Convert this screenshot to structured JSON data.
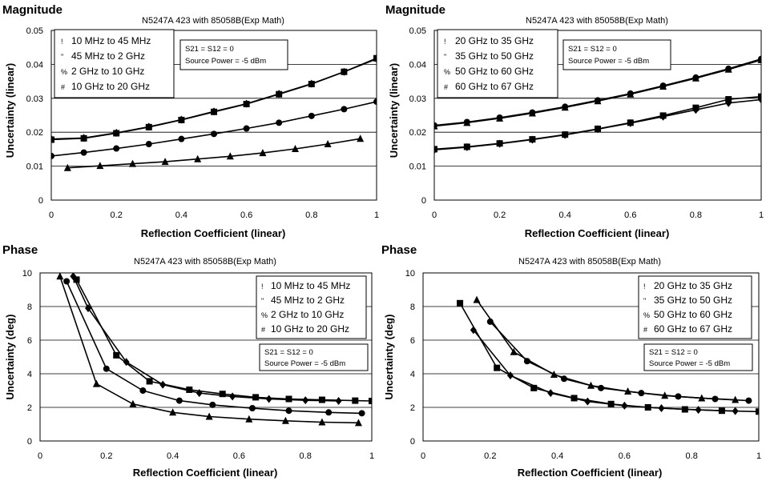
{
  "chart_data": [
    {
      "type": "line",
      "heading": "Magnitude",
      "title": "N5247A 423 with 85058B(Exp Math)",
      "xlabel": "Reflection Coefficient (linear)",
      "ylabel": "Uncertainty (linear)",
      "xlim": [
        0,
        1
      ],
      "ylim": [
        0,
        0.05
      ],
      "xticks": [
        "0",
        "0.2",
        "0.4",
        "0.6",
        "0.8",
        "1"
      ],
      "yticks": [
        "0",
        "0.01",
        "0.02",
        "0.03",
        "0.04",
        "0.05"
      ],
      "grid": true,
      "legend_position": "top-left",
      "legend_symbols": [
        "!",
        "\"",
        "%",
        "#"
      ],
      "note": [
        "S21 = S12 = 0",
        "Source Power = -5 dBm"
      ],
      "series": [
        {
          "name": "10 MHz to 45 MHz",
          "marker": "square",
          "x": [
            0,
            0.1,
            0.2,
            0.3,
            0.4,
            0.5,
            0.6,
            0.7,
            0.8,
            0.9,
            1.0
          ],
          "y": [
            0.0178,
            0.0182,
            0.0197,
            0.0215,
            0.0236,
            0.026,
            0.0283,
            0.0312,
            0.0342,
            0.0378,
            0.0418
          ]
        },
        {
          "name": "45 MHz to 2 GHz",
          "marker": "diamond",
          "x": [
            0,
            0.1,
            0.2,
            0.3,
            0.4,
            0.5,
            0.6,
            0.7,
            0.8,
            0.9,
            1.0
          ],
          "y": [
            0.018,
            0.0183,
            0.0198,
            0.0216,
            0.0237,
            0.0261,
            0.0284,
            0.0313,
            0.0343,
            0.0378,
            0.0416
          ]
        },
        {
          "name": "2 GHz to 10 GHz",
          "marker": "circle",
          "x": [
            0,
            0.1,
            0.2,
            0.3,
            0.4,
            0.5,
            0.6,
            0.7,
            0.8,
            0.9,
            1.0
          ],
          "y": [
            0.013,
            0.014,
            0.0152,
            0.0165,
            0.018,
            0.0195,
            0.0211,
            0.0228,
            0.0248,
            0.0268,
            0.029
          ]
        },
        {
          "name": "10 GHz to 20 GHz",
          "marker": "triangle",
          "x": [
            0.05,
            0.15,
            0.25,
            0.35,
            0.45,
            0.55,
            0.65,
            0.75,
            0.85,
            0.95
          ],
          "y": [
            0.0095,
            0.0101,
            0.0107,
            0.0113,
            0.0121,
            0.0129,
            0.0139,
            0.0151,
            0.0165,
            0.0181
          ]
        }
      ]
    },
    {
      "type": "line",
      "heading": "Magnitude",
      "title": "N5247A 423 with 85058B(Exp Math)",
      "xlabel": "Reflection Coefficient (linear)",
      "ylabel": "Uncertainty (linear)",
      "xlim": [
        0,
        1
      ],
      "ylim": [
        0,
        0.05
      ],
      "xticks": [
        "0",
        "0.2",
        "0.4",
        "0.6",
        "0.8",
        "1"
      ],
      "yticks": [
        "0",
        "0.01",
        "0.02",
        "0.03",
        "0.04",
        "0.05"
      ],
      "grid": true,
      "legend_position": "top-left",
      "legend_symbols": [
        "!",
        "\"",
        "%",
        "#"
      ],
      "note": [
        "S21 = S12 = 0",
        "Source Power = -5 dBm"
      ],
      "series": [
        {
          "name": "20 GHz to 35 GHz",
          "marker": "triangle",
          "x": [
            0,
            0.1,
            0.2,
            0.3,
            0.4,
            0.5,
            0.6,
            0.7,
            0.8,
            0.9,
            1.0
          ],
          "y": [
            0.0218,
            0.0228,
            0.0241,
            0.0256,
            0.0273,
            0.0292,
            0.0312,
            0.0335,
            0.0359,
            0.0385,
            0.0413
          ]
        },
        {
          "name": "35 GHz to 50 GHz",
          "marker": "circle",
          "x": [
            0,
            0.1,
            0.2,
            0.3,
            0.4,
            0.5,
            0.6,
            0.7,
            0.8,
            0.9,
            1.0
          ],
          "y": [
            0.022,
            0.023,
            0.0243,
            0.0258,
            0.0275,
            0.0294,
            0.0314,
            0.0337,
            0.0361,
            0.0387,
            0.0416
          ]
        },
        {
          "name": "50 GHz to 60 GHz",
          "marker": "square",
          "x": [
            0,
            0.1,
            0.2,
            0.3,
            0.4,
            0.5,
            0.6,
            0.7,
            0.8,
            0.9,
            1.0
          ],
          "y": [
            0.015,
            0.0157,
            0.0167,
            0.0179,
            0.0193,
            0.021,
            0.0228,
            0.0249,
            0.0272,
            0.0297,
            0.0305
          ]
        },
        {
          "name": "60 GHz to 67 GHz",
          "marker": "diamond",
          "x": [
            0,
            0.1,
            0.2,
            0.3,
            0.4,
            0.5,
            0.6,
            0.7,
            0.8,
            0.9,
            1.0
          ],
          "y": [
            0.0148,
            0.0156,
            0.0166,
            0.0178,
            0.0192,
            0.0209,
            0.0227,
            0.0246,
            0.0266,
            0.0286,
            0.0296
          ]
        }
      ]
    },
    {
      "type": "line",
      "heading": "Phase",
      "title": "N5247A 423 with 85058B(Exp Math)",
      "xlabel": "Reflection Coefficient (linear)",
      "ylabel": "Uncertainty (deg)",
      "xlim": [
        0,
        1
      ],
      "ylim": [
        0,
        10
      ],
      "xticks": [
        "0",
        "0.2",
        "0.4",
        "0.6",
        "0.8",
        "1"
      ],
      "yticks": [
        "0",
        "2",
        "4",
        "6",
        "8",
        "10"
      ],
      "grid": true,
      "legend_position": "top-right",
      "legend_symbols": [
        "!",
        "\"",
        "%",
        "#"
      ],
      "note": [
        "S21 = S12 = 0",
        "Source Power = -5 dBm"
      ],
      "series": [
        {
          "name": "10 MHz to 45 MHz",
          "marker": "square",
          "x": [
            0.11,
            0.23,
            0.33,
            0.45,
            0.55,
            0.65,
            0.75,
            0.85,
            0.95,
            1.0
          ],
          "y": [
            9.6,
            5.1,
            3.55,
            3.05,
            2.8,
            2.6,
            2.5,
            2.45,
            2.4,
            2.38
          ]
        },
        {
          "name": "45 MHz to 2 GHz",
          "marker": "diamond",
          "x": [
            0.1,
            0.145,
            0.26,
            0.37,
            0.48,
            0.58,
            0.69,
            0.8,
            0.9
          ],
          "y": [
            9.8,
            7.9,
            4.7,
            3.35,
            2.85,
            2.65,
            2.5,
            2.42,
            2.38
          ]
        },
        {
          "name": "2 GHz to 10 GHz",
          "marker": "circle",
          "x": [
            0.08,
            0.2,
            0.31,
            0.42,
            0.52,
            0.64,
            0.75,
            0.87,
            0.97
          ],
          "y": [
            9.5,
            4.3,
            3.0,
            2.4,
            2.15,
            1.95,
            1.8,
            1.7,
            1.65
          ]
        },
        {
          "name": "10 GHz to 20 GHz",
          "marker": "triangle",
          "x": [
            0.06,
            0.17,
            0.28,
            0.4,
            0.51,
            0.63,
            0.74,
            0.85,
            0.96
          ],
          "y": [
            9.8,
            3.4,
            2.2,
            1.7,
            1.45,
            1.3,
            1.2,
            1.12,
            1.08
          ]
        }
      ]
    },
    {
      "type": "line",
      "heading": "Phase",
      "title": "N5247A 423 with 85058B(Exp Math)",
      "xlabel": "Reflection Coefficient (linear)",
      "ylabel": "Uncertainty (deg)",
      "xlim": [
        0,
        1
      ],
      "ylim": [
        0,
        10
      ],
      "xticks": [
        "0",
        "0.2",
        "0.4",
        "0.6",
        "0.8",
        "1"
      ],
      "yticks": [
        "0",
        "2",
        "4",
        "6",
        "8",
        "10"
      ],
      "grid": true,
      "legend_position": "top-right",
      "legend_symbols": [
        "!",
        "\"",
        "%",
        "#"
      ],
      "note": [
        "S21 = S12 = 0",
        "Source Power = -5 dBm"
      ],
      "series": [
        {
          "name": "20 GHz to 35 GHz",
          "marker": "triangle",
          "x": [
            0.16,
            0.27,
            0.39,
            0.5,
            0.61,
            0.72,
            0.83,
            0.93
          ],
          "y": [
            8.4,
            5.3,
            3.95,
            3.3,
            2.95,
            2.7,
            2.55,
            2.45
          ]
        },
        {
          "name": "35 GHz to 50 GHz",
          "marker": "circle",
          "x": [
            0.2,
            0.31,
            0.42,
            0.53,
            0.65,
            0.76,
            0.87,
            0.97
          ],
          "y": [
            7.1,
            4.75,
            3.7,
            3.15,
            2.85,
            2.65,
            2.5,
            2.4
          ]
        },
        {
          "name": "50 GHz to 60 GHz",
          "marker": "square",
          "x": [
            0.11,
            0.22,
            0.33,
            0.45,
            0.56,
            0.67,
            0.78,
            0.89,
            1.0
          ],
          "y": [
            8.2,
            4.35,
            3.15,
            2.55,
            2.2,
            2.0,
            1.88,
            1.8,
            1.75
          ]
        },
        {
          "name": "60 GHz to 67 GHz",
          "marker": "diamond",
          "x": [
            0.15,
            0.26,
            0.38,
            0.49,
            0.6,
            0.71,
            0.82,
            0.93
          ],
          "y": [
            6.6,
            3.9,
            2.85,
            2.35,
            2.1,
            1.95,
            1.85,
            1.78
          ]
        }
      ]
    }
  ]
}
